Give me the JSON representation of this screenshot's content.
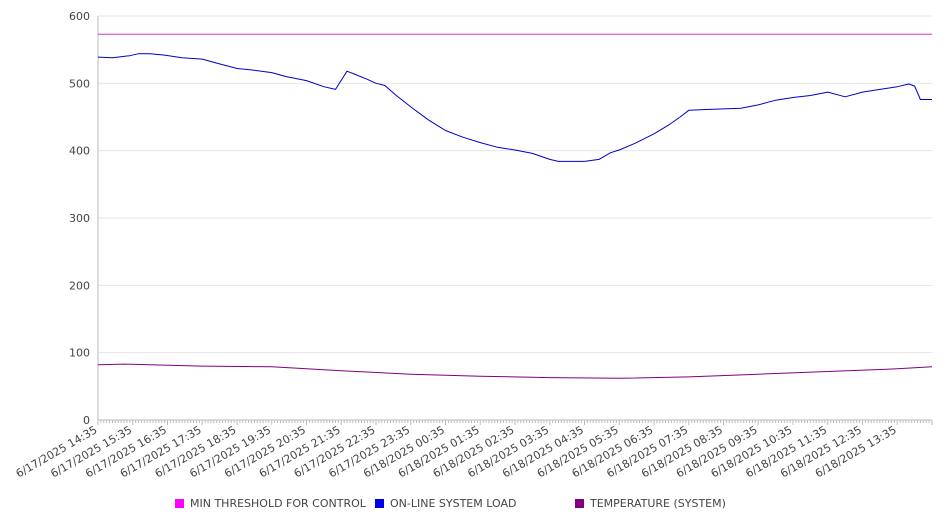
{
  "chart_data": {
    "type": "line",
    "ylim": [
      0,
      600
    ],
    "yticks": [
      0,
      100,
      200,
      300,
      400,
      500,
      600
    ],
    "grid": true,
    "legend_placement": "bottom",
    "x_tick_labels": [
      "6/17/2025 14:35",
      "6/17/2025 15:35",
      "6/17/2025 16:35",
      "6/17/2025 17:35",
      "6/17/2025 18:35",
      "6/17/2025 19:35",
      "6/17/2025 20:35",
      "6/17/2025 21:35",
      "6/17/2025 22:35",
      "6/17/2025 23:35",
      "6/18/2025 00:35",
      "6/18/2025 01:35",
      "6/18/2025 02:35",
      "6/18/2025 03:35",
      "6/18/2025 04:35",
      "6/18/2025 05:35",
      "6/18/2025 06:35",
      "6/18/2025 07:35",
      "6/18/2025 08:35",
      "6/18/2025 09:35",
      "6/18/2025 10:35",
      "6/18/2025 11:35",
      "6/18/2025 12:35",
      "6/18/2025 13:35"
    ],
    "x_range": [
      "6/17/2025 14:35",
      "6/18/2025 14:35"
    ],
    "series": [
      {
        "name": "MIN THRESHOLD FOR CONTROL",
        "color": "#cc33cc",
        "points": [
          [
            "6/17/2025 14:35",
            573
          ],
          [
            "6/18/2025 14:35",
            573
          ]
        ]
      },
      {
        "name": "ON-LINE SYSTEM LOAD",
        "color": "#0000cc",
        "points": [
          [
            "6/17/2025 14:35",
            539
          ],
          [
            "6/17/2025 15:00",
            538
          ],
          [
            "6/17/2025 15:30",
            541
          ],
          [
            "6/17/2025 15:45",
            544
          ],
          [
            "6/17/2025 16:05",
            544
          ],
          [
            "6/17/2025 16:30",
            542
          ],
          [
            "6/17/2025 17:00",
            538
          ],
          [
            "6/17/2025 17:35",
            536
          ],
          [
            "6/17/2025 18:00",
            530
          ],
          [
            "6/17/2025 18:35",
            522
          ],
          [
            "6/17/2025 19:00",
            520
          ],
          [
            "6/17/2025 19:35",
            516
          ],
          [
            "6/17/2025 20:00",
            510
          ],
          [
            "6/17/2025 20:35",
            504
          ],
          [
            "6/17/2025 21:05",
            495
          ],
          [
            "6/17/2025 21:25",
            491
          ],
          [
            "6/17/2025 21:45",
            518
          ],
          [
            "6/17/2025 22:00",
            513
          ],
          [
            "6/17/2025 22:20",
            506
          ],
          [
            "6/17/2025 22:35",
            500
          ],
          [
            "6/17/2025 22:50",
            497
          ],
          [
            "6/17/2025 23:10",
            482
          ],
          [
            "6/17/2025 23:35",
            465
          ],
          [
            "6/18/2025 00:05",
            446
          ],
          [
            "6/18/2025 00:35",
            430
          ],
          [
            "6/18/2025 01:05",
            420
          ],
          [
            "6/18/2025 01:35",
            412
          ],
          [
            "6/18/2025 02:05",
            405
          ],
          [
            "6/18/2025 02:35",
            401
          ],
          [
            "6/18/2025 03:05",
            396
          ],
          [
            "6/18/2025 03:35",
            387
          ],
          [
            "6/18/2025 03:50",
            384
          ],
          [
            "6/18/2025 04:35",
            384
          ],
          [
            "6/18/2025 05:00",
            387
          ],
          [
            "6/18/2025 05:20",
            397
          ],
          [
            "6/18/2025 05:35",
            401
          ],
          [
            "6/18/2025 06:05",
            412
          ],
          [
            "6/18/2025 06:35",
            425
          ],
          [
            "6/18/2025 07:00",
            438
          ],
          [
            "6/18/2025 07:20",
            450
          ],
          [
            "6/18/2025 07:35",
            460
          ],
          [
            "6/18/2025 08:00",
            461
          ],
          [
            "6/18/2025 08:35",
            462
          ],
          [
            "6/18/2025 09:05",
            463
          ],
          [
            "6/18/2025 09:35",
            468
          ],
          [
            "6/18/2025 10:05",
            475
          ],
          [
            "6/18/2025 10:35",
            479
          ],
          [
            "6/18/2025 11:05",
            482
          ],
          [
            "6/18/2025 11:35",
            487
          ],
          [
            "6/18/2025 12:05",
            480
          ],
          [
            "6/18/2025 12:35",
            487
          ],
          [
            "6/18/2025 13:05",
            491
          ],
          [
            "6/18/2025 13:35",
            495
          ],
          [
            "6/18/2025 13:55",
            499
          ],
          [
            "6/18/2025 14:05",
            496
          ],
          [
            "6/18/2025 14:15",
            476
          ],
          [
            "6/18/2025 14:35",
            476
          ]
        ]
      },
      {
        "name": "TEMPERATURE (SYSTEM)",
        "color": "#800080",
        "points": [
          [
            "6/17/2025 14:35",
            82
          ],
          [
            "6/17/2025 15:20",
            83
          ],
          [
            "6/17/2025 16:05",
            82
          ],
          [
            "6/17/2025 17:35",
            80
          ],
          [
            "6/17/2025 19:35",
            79
          ],
          [
            "6/17/2025 21:35",
            73
          ],
          [
            "6/17/2025 23:35",
            68
          ],
          [
            "6/18/2025 01:35",
            65
          ],
          [
            "6/18/2025 03:35",
            63
          ],
          [
            "6/18/2025 05:35",
            62
          ],
          [
            "6/18/2025 07:35",
            64
          ],
          [
            "6/18/2025 09:35",
            68
          ],
          [
            "6/18/2025 11:35",
            72
          ],
          [
            "6/18/2025 13:35",
            76
          ],
          [
            "6/18/2025 14:35",
            79
          ]
        ]
      }
    ]
  }
}
